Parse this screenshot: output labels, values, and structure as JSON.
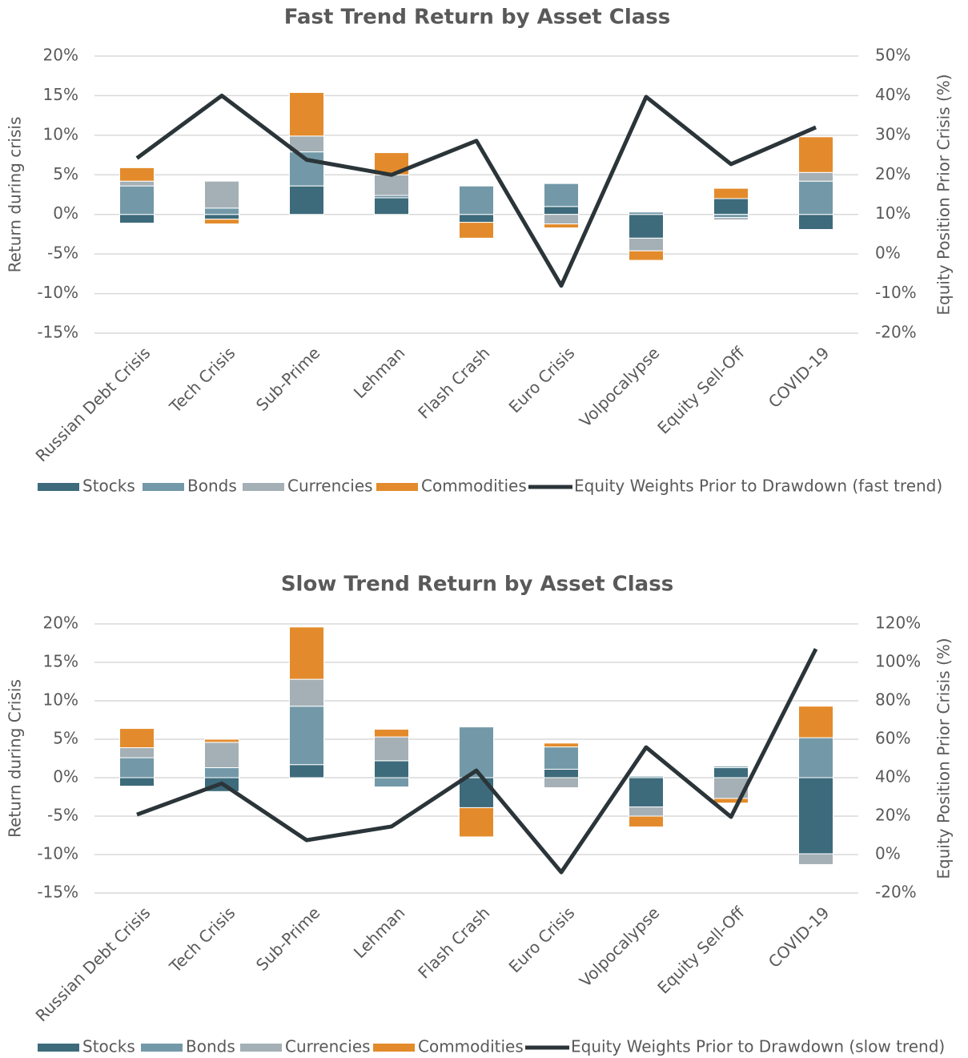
{
  "chart_data": [
    {
      "type": "bar",
      "stacked": true,
      "title": "Fast Trend Return by Asset Class",
      "y_label": "Return during crisis",
      "y2_label": "Equity Position Prior Crisis (%)",
      "categories": [
        "Russian Debt Crisis",
        "Tech Crisis",
        "Sub-Prime",
        "Lehman",
        "Flash Crash",
        "Euro Crisis",
        "Volpocalypse",
        "Equity Sell-Off",
        "COVID-19"
      ],
      "ylim": [
        -15,
        20
      ],
      "yticks": [
        {
          "value": -15,
          "label": "-15%"
        },
        {
          "value": -10,
          "label": "-10%"
        },
        {
          "value": -5,
          "label": "-5%"
        },
        {
          "value": 0,
          "label": "0%"
        },
        {
          "value": 5,
          "label": "5%"
        },
        {
          "value": 10,
          "label": "10%"
        },
        {
          "value": 15,
          "label": "15%"
        },
        {
          "value": 20,
          "label": "20%"
        }
      ],
      "y2lim": [
        -20,
        50
      ],
      "y2ticks": [
        {
          "value": -20,
          "label": "-20%"
        },
        {
          "value": -10,
          "label": "-10%"
        },
        {
          "value": 0,
          "label": "0%"
        },
        {
          "value": 10,
          "label": "10%"
        },
        {
          "value": 20,
          "label": "20%"
        },
        {
          "value": 30,
          "label": "30%"
        },
        {
          "value": 40,
          "label": "40%"
        },
        {
          "value": 50,
          "label": "50%"
        }
      ],
      "grid": true,
      "series": [
        {
          "name": "Stocks",
          "type": "bar",
          "color": "#3d6b7b",
          "values": [
            -1.1,
            -0.6,
            3.6,
            2.1,
            -1.0,
            1.0,
            -3.0,
            2.0,
            -1.9
          ]
        },
        {
          "name": "Bonds",
          "type": "bar",
          "color": "#7399a8",
          "values": [
            3.6,
            0.8,
            4.3,
            0.3,
            3.6,
            2.9,
            0.3,
            -0.4,
            4.2
          ]
        },
        {
          "name": "Currencies",
          "type": "bar",
          "color": "#a4b0b6",
          "values": [
            0.6,
            3.4,
            2.0,
            2.6,
            0.1,
            -1.2,
            -1.6,
            -0.3,
            1.1
          ]
        },
        {
          "name": "Commodities",
          "type": "bar",
          "color": "#e38b2c",
          "values": [
            1.7,
            -0.6,
            5.5,
            2.8,
            -2.0,
            -0.5,
            -1.2,
            1.3,
            4.5
          ]
        },
        {
          "name": "Equity Weights Prior to Drawdown (fast trend)",
          "type": "line",
          "axis": "y2",
          "color": "#2b3539",
          "values": [
            24.2,
            40.0,
            23.8,
            20.0,
            28.6,
            -8.0,
            39.7,
            22.7,
            32.0
          ]
        }
      ]
    },
    {
      "type": "bar",
      "stacked": true,
      "title": "Slow Trend Return by Asset Class",
      "y_label": "Return during Crisis",
      "y2_label": "Equity Position Prior Crisis (%)",
      "categories": [
        "Russian Debt Crisis",
        "Tech Crisis",
        "Sub-Prime",
        "Lehman",
        "Flash Crash",
        "Euro Crisis",
        "Volpocalypse",
        "Equity Sell-Off",
        "COVID-19"
      ],
      "ylim": [
        -15,
        20
      ],
      "yticks": [
        {
          "value": -15,
          "label": "-15%"
        },
        {
          "value": -10,
          "label": "-10%"
        },
        {
          "value": -5,
          "label": "-5%"
        },
        {
          "value": 0,
          "label": "0%"
        },
        {
          "value": 5,
          "label": "5%"
        },
        {
          "value": 10,
          "label": "10%"
        },
        {
          "value": 15,
          "label": "15%"
        },
        {
          "value": 20,
          "label": "20%"
        }
      ],
      "y2lim": [
        -20,
        120
      ],
      "y2ticks": [
        {
          "value": -20,
          "label": "-20%"
        },
        {
          "value": 0,
          "label": "0%"
        },
        {
          "value": 20,
          "label": "20%"
        },
        {
          "value": 40,
          "label": "40%"
        },
        {
          "value": 60,
          "label": "60%"
        },
        {
          "value": 80,
          "label": "80%"
        },
        {
          "value": 100,
          "label": "100%"
        },
        {
          "value": 120,
          "label": "120%"
        }
      ],
      "grid": true,
      "series": [
        {
          "name": "Stocks",
          "type": "bar",
          "color": "#3d6b7b",
          "values": [
            -1.1,
            -1.8,
            1.7,
            2.2,
            -3.9,
            1.1,
            -3.8,
            1.3,
            -9.9
          ]
        },
        {
          "name": "Bonds",
          "type": "bar",
          "color": "#7399a8",
          "values": [
            2.6,
            1.3,
            7.6,
            -1.2,
            6.6,
            2.9,
            0.2,
            0.2,
            5.2
          ]
        },
        {
          "name": "Currencies",
          "type": "bar",
          "color": "#a4b0b6",
          "values": [
            1.3,
            3.3,
            3.5,
            3.1,
            0,
            -1.3,
            -1.2,
            -2.7,
            -1.4
          ]
        },
        {
          "name": "Commodities",
          "type": "bar",
          "color": "#e38b2c",
          "values": [
            2.5,
            0.4,
            6.8,
            1.0,
            -3.8,
            0.5,
            -1.4,
            -0.6,
            4.1
          ]
        },
        {
          "name": "Equity Weights Prior to Drawdown (slow trend)",
          "type": "line",
          "axis": "y2",
          "color": "#2b3539",
          "values": [
            20.8,
            37.0,
            7.5,
            14.6,
            43.7,
            -9.2,
            55.8,
            19.6,
            107.0
          ]
        }
      ]
    }
  ]
}
